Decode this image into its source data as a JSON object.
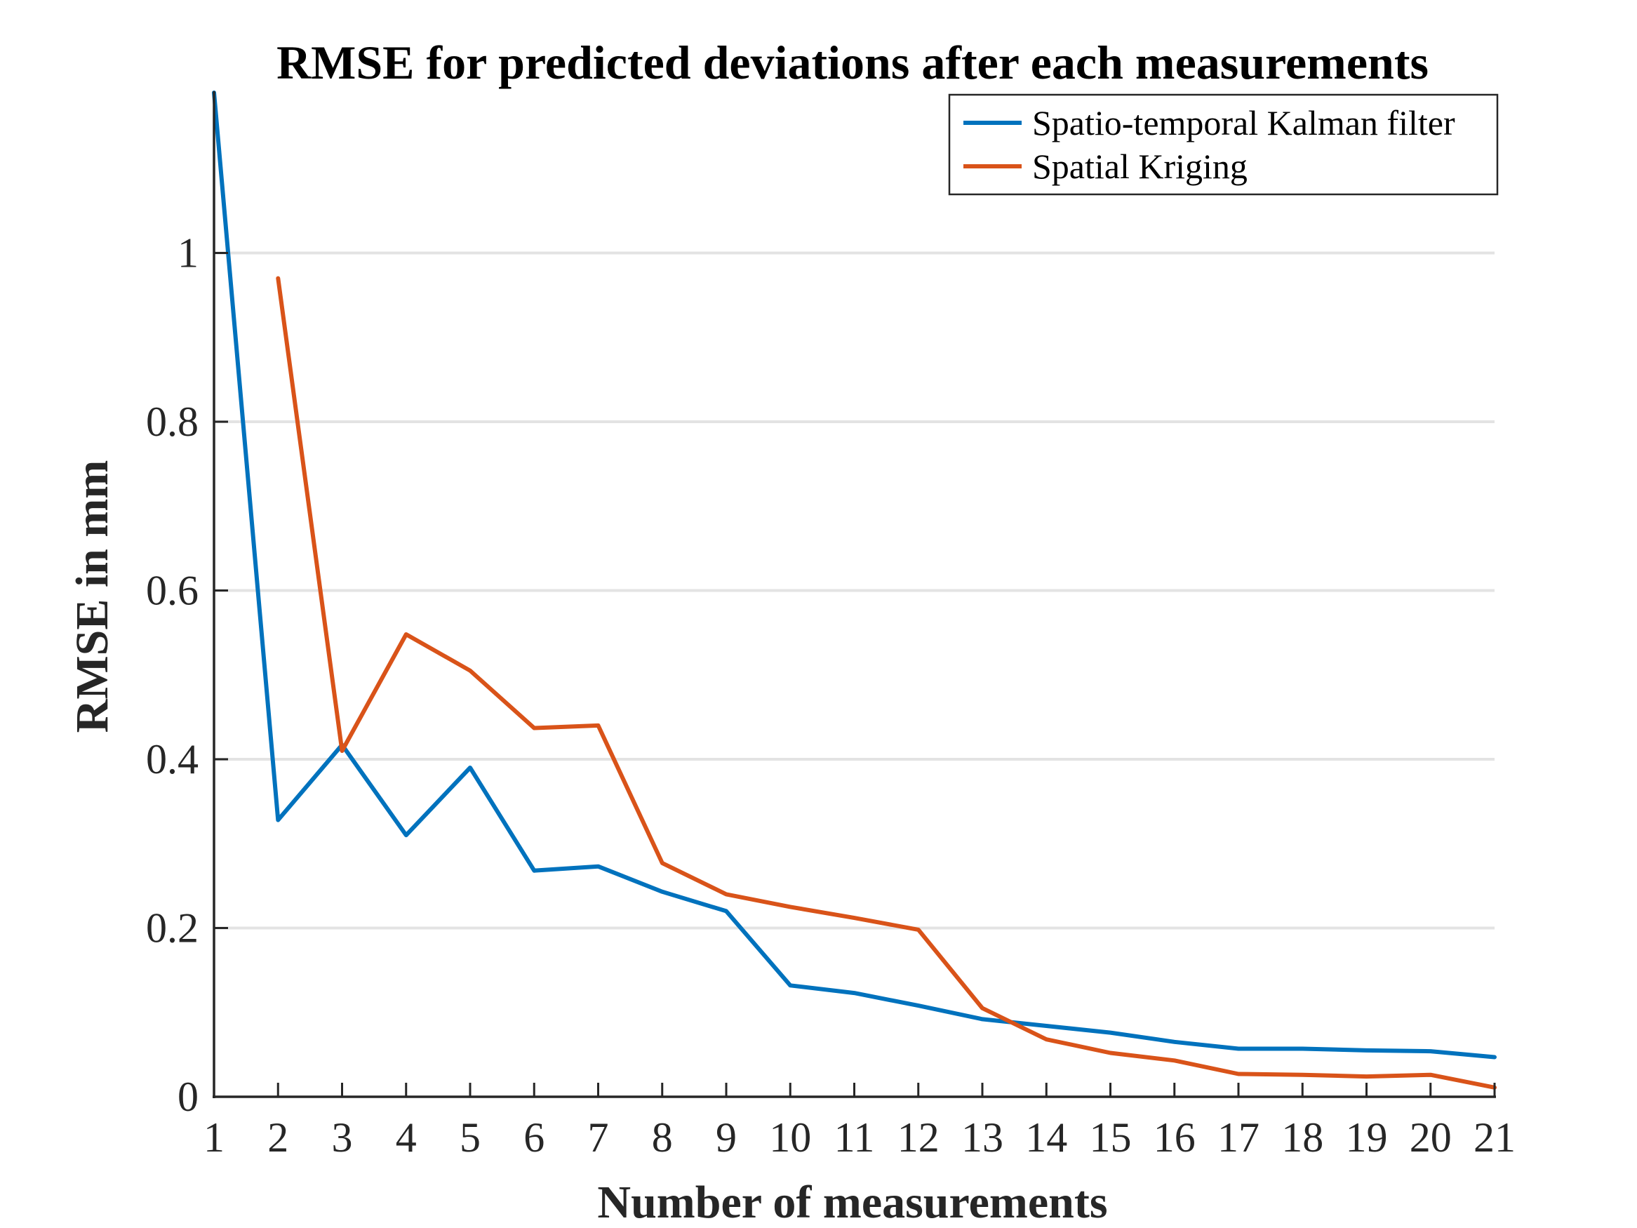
{
  "chart_data": {
    "type": "line",
    "title": "RMSE for predicted deviations after each measurements",
    "xlabel": "Number of measurements",
    "ylabel": "RMSE in mm",
    "xlim": [
      1,
      21
    ],
    "ylim": [
      0,
      1.19
    ],
    "x_ticks": [
      1,
      2,
      3,
      4,
      5,
      6,
      7,
      8,
      9,
      10,
      11,
      12,
      13,
      14,
      15,
      16,
      17,
      18,
      19,
      20,
      21
    ],
    "y_ticks": [
      0,
      0.2,
      0.4,
      0.6,
      0.8,
      1
    ],
    "y_tick_labels": [
      "0",
      "0.2",
      "0.4",
      "0.6",
      "0.8",
      "1"
    ],
    "grid": "horizontal",
    "legend_position": "top-right",
    "series": [
      {
        "name": "Spatio-temporal Kalman filter",
        "color": "#0072BD",
        "x": [
          1,
          2,
          3,
          4,
          5,
          6,
          7,
          8,
          9,
          10,
          11,
          12,
          13,
          14,
          15,
          16,
          17,
          18,
          19,
          20,
          21
        ],
        "values": [
          1.19,
          0.328,
          0.417,
          0.31,
          0.39,
          0.268,
          0.273,
          0.243,
          0.22,
          0.132,
          0.123,
          0.108,
          0.092,
          0.084,
          0.076,
          0.065,
          0.057,
          0.057,
          0.055,
          0.054,
          0.047
        ]
      },
      {
        "name": "Spatial Kriging",
        "color": "#D95319",
        "x": [
          2,
          3,
          4,
          5,
          6,
          7,
          8,
          9,
          10,
          11,
          12,
          13,
          14,
          15,
          16,
          17,
          18,
          19,
          20,
          21
        ],
        "values": [
          0.97,
          0.41,
          0.548,
          0.505,
          0.437,
          0.44,
          0.277,
          0.24,
          0.225,
          0.212,
          0.198,
          0.105,
          0.068,
          0.052,
          0.043,
          0.027,
          0.026,
          0.024,
          0.026,
          0.011
        ]
      }
    ]
  }
}
